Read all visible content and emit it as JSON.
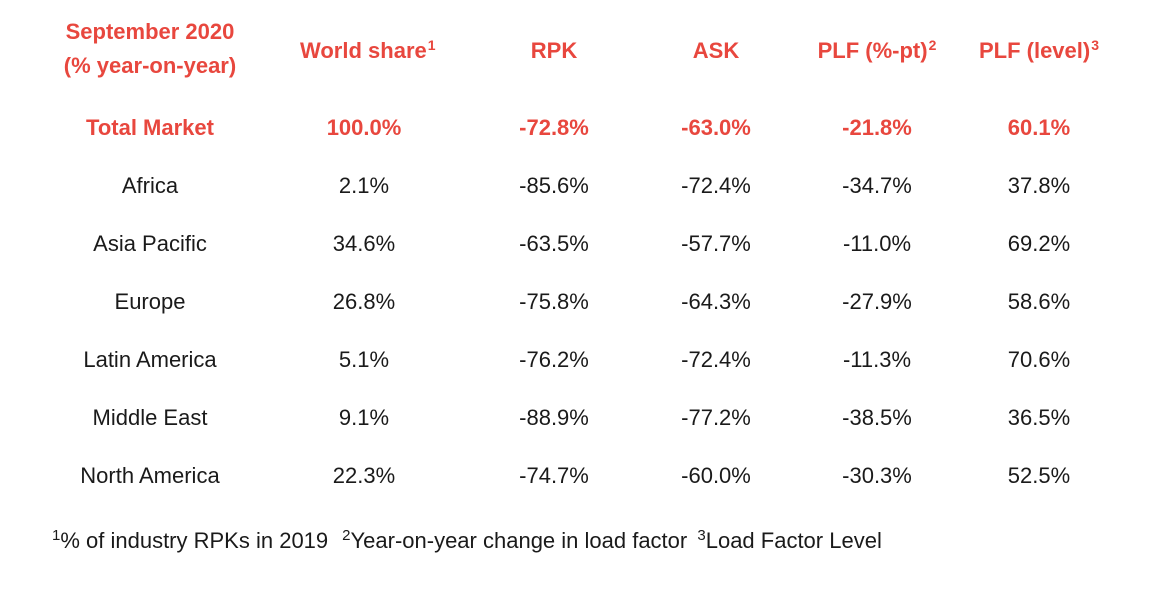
{
  "header": {
    "label_line1": "September 2020",
    "label_line2": "(% year-on-year)",
    "world_share": "World share",
    "world_share_sup": "1",
    "rpk": "RPK",
    "ask": "ASK",
    "plf_pt": "PLF (%-pt)",
    "plf_pt_sup": "2",
    "plf_level": "PLF (level)",
    "plf_level_sup": "3"
  },
  "rows": [
    {
      "region": "Total Market",
      "world_share": "100.0%",
      "rpk": "-72.8%",
      "ask": "-63.0%",
      "plf_pt": "-21.8%",
      "plf_level": "60.1%"
    },
    {
      "region": "Africa",
      "world_share": "2.1%",
      "rpk": "-85.6%",
      "ask": "-72.4%",
      "plf_pt": "-34.7%",
      "plf_level": "37.8%"
    },
    {
      "region": "Asia Pacific",
      "world_share": "34.6%",
      "rpk": "-63.5%",
      "ask": "-57.7%",
      "plf_pt": "-11.0%",
      "plf_level": "69.2%"
    },
    {
      "region": "Europe",
      "world_share": "26.8%",
      "rpk": "-75.8%",
      "ask": "-64.3%",
      "plf_pt": "-27.9%",
      "plf_level": "58.6%"
    },
    {
      "region": "Latin America",
      "world_share": "5.1%",
      "rpk": "-76.2%",
      "ask": "-72.4%",
      "plf_pt": "-11.3%",
      "plf_level": "70.6%"
    },
    {
      "region": "Middle East",
      "world_share": "9.1%",
      "rpk": "-88.9%",
      "ask": "-77.2%",
      "plf_pt": "-38.5%",
      "plf_level": "36.5%"
    },
    {
      "region": "North America",
      "world_share": "22.3%",
      "rpk": "-74.7%",
      "ask": "-60.0%",
      "plf_pt": "-30.3%",
      "plf_level": "52.5%"
    }
  ],
  "footnotes": {
    "fn1_mark": "1",
    "fn1_text": "% of industry RPKs in 2019",
    "fn2_mark": "2",
    "fn2_text": "Year-on-year change in load factor",
    "fn3_mark": "3",
    "fn3_text": "Load Factor Level"
  },
  "colors": {
    "accent": "#e8473e",
    "text": "#1a1a1a",
    "background": "#ffffff"
  }
}
